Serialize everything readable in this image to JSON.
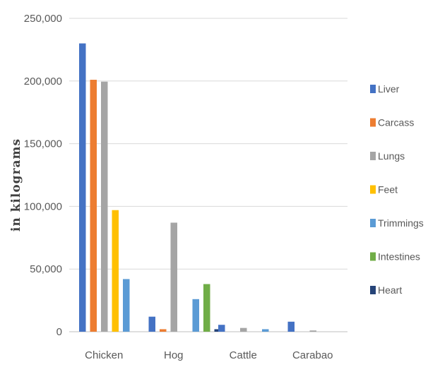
{
  "chart_data": {
    "type": "bar",
    "categories": [
      "Chicken",
      "Hog",
      "Cattle",
      "Carabao"
    ],
    "series": [
      {
        "name": "Liver",
        "color": "#4472C4",
        "values": [
          230000,
          12000,
          5500,
          8000
        ]
      },
      {
        "name": "Carcass",
        "color": "#ED7D31",
        "values": [
          201000,
          2000,
          0,
          0
        ]
      },
      {
        "name": "Lungs",
        "color": "#A5A5A5",
        "values": [
          199500,
          87000,
          3000,
          1000
        ]
      },
      {
        "name": "Feet",
        "color": "#FFC000",
        "values": [
          97000,
          0,
          0,
          0
        ]
      },
      {
        "name": "Trimmings",
        "color": "#5B9BD5",
        "values": [
          42000,
          26000,
          2000,
          0
        ]
      },
      {
        "name": "Intestines",
        "color": "#70AD47",
        "values": [
          0,
          38000,
          0,
          0
        ]
      },
      {
        "name": "Heart",
        "color": "#264478",
        "values": [
          0,
          2000,
          0,
          0
        ]
      }
    ],
    "ylabel": "in kilograms",
    "ylim": [
      0,
      250000
    ],
    "yticks": [
      "0",
      "50,000",
      "100,000",
      "150,000",
      "200,000",
      "250,000"
    ],
    "ytick_values": [
      0,
      50000,
      100000,
      150000,
      200000,
      250000
    ],
    "grid": true,
    "legend": "right"
  }
}
